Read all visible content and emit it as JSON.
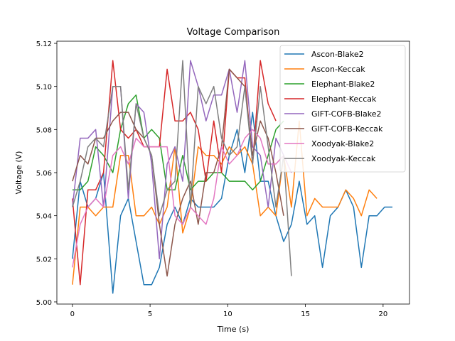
{
  "chart_data": {
    "type": "line",
    "title": "Voltage Comparison",
    "xlabel": "Time (s)",
    "ylabel": "Voltage (V)",
    "xlim": [
      -1.0,
      21.7
    ],
    "ylim": [
      4.999,
      5.121
    ],
    "xticks": [
      0,
      5,
      10,
      15,
      20
    ],
    "yticks": [
      5.0,
      5.02,
      5.04,
      5.06,
      5.08,
      5.1,
      5.12
    ],
    "ytick_labels": [
      "5.00",
      "5.02",
      "5.04",
      "5.06",
      "5.08",
      "5.10",
      "5.12"
    ],
    "grid": false,
    "legend_position": "upper right",
    "series": [
      {
        "name": "Ascon-Blake2",
        "color": "#1f77b4",
        "x": [
          0.0,
          0.5,
          1.0,
          1.5,
          2.0,
          2.6,
          3.1,
          3.6,
          4.1,
          4.6,
          5.1,
          5.6,
          6.1,
          6.6,
          7.1,
          7.6,
          8.1,
          8.6,
          9.1,
          9.6,
          10.1,
          10.6,
          11.1,
          11.6,
          12.1,
          12.6,
          13.1,
          13.6,
          14.1,
          14.6,
          15.1,
          15.6,
          16.1,
          16.6,
          17.1,
          17.6,
          18.1,
          18.6,
          19.1,
          19.6,
          20.1,
          20.6
        ],
        "y": [
          5.02,
          5.056,
          5.044,
          5.048,
          5.06,
          5.004,
          5.04,
          5.048,
          5.028,
          5.008,
          5.008,
          5.016,
          5.036,
          5.044,
          5.036,
          5.048,
          5.044,
          5.044,
          5.044,
          5.048,
          5.068,
          5.08,
          5.06,
          5.088,
          5.056,
          5.056,
          5.04,
          5.028,
          5.036,
          5.056,
          5.036,
          5.04,
          5.016,
          5.04,
          5.044,
          5.052,
          5.044,
          5.016,
          5.04,
          5.04,
          5.044,
          5.044
        ]
      },
      {
        "name": "Ascon-Keccak",
        "color": "#ff7f0e",
        "x": [
          0.0,
          0.5,
          1.0,
          1.5,
          2.0,
          2.6,
          3.1,
          3.6,
          4.1,
          4.6,
          5.1,
          5.6,
          6.1,
          6.6,
          7.1,
          7.6,
          8.1,
          8.6,
          9.1,
          9.6,
          10.1,
          10.6,
          11.1,
          11.6,
          12.1,
          12.6,
          13.1,
          13.6,
          14.1,
          14.6,
          15.1,
          15.6,
          16.1,
          16.6,
          17.1,
          17.6,
          18.1,
          18.6,
          19.1,
          19.6
        ],
        "y": [
          5.008,
          5.044,
          5.044,
          5.04,
          5.044,
          5.044,
          5.068,
          5.068,
          5.04,
          5.04,
          5.044,
          5.036,
          5.044,
          5.072,
          5.032,
          5.044,
          5.072,
          5.068,
          5.068,
          5.064,
          5.072,
          5.068,
          5.072,
          5.064,
          5.04,
          5.044,
          5.04,
          5.068,
          5.044,
          5.084,
          5.04,
          5.048,
          5.044,
          5.044,
          5.044,
          5.052,
          5.048,
          5.04,
          5.052,
          5.048
        ]
      },
      {
        "name": "Elephant-Blake2",
        "color": "#2ca02c",
        "x": [
          0.0,
          0.5,
          1.0,
          1.5,
          2.0,
          2.6,
          3.1,
          3.6,
          4.1,
          4.6,
          5.1,
          5.6,
          6.1,
          6.6,
          7.1,
          7.6,
          8.1,
          8.6,
          9.1,
          9.6,
          10.1,
          10.6,
          11.1,
          11.6,
          12.1,
          12.6,
          13.1,
          13.6
        ],
        "y": [
          5.052,
          5.052,
          5.056,
          5.072,
          5.068,
          5.06,
          5.08,
          5.092,
          5.096,
          5.076,
          5.08,
          5.076,
          5.052,
          5.052,
          5.068,
          5.052,
          5.056,
          5.056,
          5.06,
          5.06,
          5.056,
          5.056,
          5.056,
          5.052,
          5.056,
          5.068,
          5.08,
          5.084
        ]
      },
      {
        "name": "Elephant-Keccak",
        "color": "#d62728",
        "x": [
          0.0,
          0.5,
          1.0,
          1.5,
          2.0,
          2.6,
          3.1,
          3.6,
          4.1,
          4.6,
          5.1,
          5.6,
          6.1,
          6.6,
          7.1,
          7.6,
          8.1,
          8.6,
          9.1,
          9.6,
          10.1,
          10.6,
          11.1,
          11.6,
          12.1,
          12.6,
          13.1
        ],
        "y": [
          5.048,
          5.008,
          5.052,
          5.052,
          5.06,
          5.112,
          5.08,
          5.076,
          5.08,
          5.072,
          5.072,
          5.072,
          5.108,
          5.084,
          5.084,
          5.088,
          5.08,
          5.056,
          5.084,
          5.06,
          5.108,
          5.104,
          5.104,
          5.064,
          5.112,
          5.092,
          5.084
        ]
      },
      {
        "name": "GIFT-COFB-Blake2",
        "color": "#9467bd",
        "x": [
          0.0,
          0.5,
          1.0,
          1.5,
          2.0,
          2.6,
          3.1,
          3.6,
          4.1,
          4.6,
          5.1,
          5.6,
          6.1,
          6.6,
          7.1,
          7.6,
          8.1,
          8.6,
          9.1,
          9.6,
          10.1,
          10.6,
          11.1,
          11.6,
          12.1,
          12.6,
          13.1,
          13.6,
          14.1
        ],
        "y": [
          5.044,
          5.076,
          5.076,
          5.08,
          5.044,
          5.1,
          5.1,
          5.048,
          5.092,
          5.088,
          5.064,
          5.02,
          5.064,
          5.072,
          5.056,
          5.112,
          5.1,
          5.084,
          5.096,
          5.096,
          5.108,
          5.088,
          5.112,
          5.072,
          5.068,
          5.044,
          5.076,
          5.068,
          5.06
        ]
      },
      {
        "name": "GIFT-COFB-Keccak",
        "color": "#8c564b",
        "x": [
          0.0,
          0.5,
          1.0,
          1.5,
          2.0,
          2.6,
          3.1,
          3.6,
          4.1,
          4.6,
          5.1,
          5.6,
          6.1,
          6.6,
          7.1,
          7.6,
          8.1,
          8.6,
          9.1,
          9.6,
          10.1,
          10.6,
          11.1,
          11.6,
          12.1,
          12.6,
          13.1,
          13.6
        ],
        "y": [
          5.056,
          5.068,
          5.064,
          5.076,
          5.076,
          5.084,
          5.088,
          5.088,
          5.08,
          5.076,
          5.068,
          5.036,
          5.012,
          5.036,
          5.048,
          5.056,
          5.036,
          5.06,
          5.06,
          5.072,
          5.108,
          5.104,
          5.1,
          5.068,
          5.084,
          5.076,
          5.06,
          5.04
        ]
      },
      {
        "name": "Xoodyak-Blake2",
        "color": "#e377c2",
        "x": [
          0.0,
          0.5,
          1.0,
          1.5,
          2.0,
          2.6,
          3.1,
          3.6,
          4.1,
          4.6,
          5.1,
          5.6,
          6.1,
          6.6,
          7.1,
          7.6,
          8.1,
          8.6,
          9.1,
          9.6,
          10.1,
          10.6,
          11.1,
          11.6,
          12.1,
          12.6,
          13.1,
          13.6,
          14.1
        ],
        "y": [
          5.016,
          5.036,
          5.044,
          5.048,
          5.044,
          5.068,
          5.072,
          5.064,
          5.076,
          5.072,
          5.072,
          5.072,
          5.072,
          5.04,
          5.036,
          5.044,
          5.04,
          5.036,
          5.048,
          5.072,
          5.064,
          5.068,
          5.076,
          5.08,
          5.076,
          5.064,
          5.064,
          5.068,
          5.06
        ]
      },
      {
        "name": "Xoodyak-Keccak",
        "color": "#7f7f7f",
        "x": [
          0.0,
          0.5,
          1.0,
          1.5,
          2.0,
          2.6,
          3.1,
          3.6,
          4.1,
          4.6,
          5.1,
          5.6,
          6.1,
          6.6,
          7.1,
          7.6,
          8.1,
          8.6,
          9.1,
          9.6,
          10.1,
          10.6,
          11.1,
          11.6,
          12.1,
          12.6,
          13.1,
          13.6,
          14.1
        ],
        "y": [
          5.044,
          5.056,
          5.072,
          5.076,
          5.072,
          5.1,
          5.1,
          5.052,
          5.092,
          5.076,
          5.068,
          5.04,
          5.052,
          5.056,
          5.112,
          5.044,
          5.1,
          5.092,
          5.1,
          5.076,
          5.068,
          5.072,
          5.1,
          5.064,
          5.1,
          5.072,
          5.044,
          5.068,
          5.012
        ]
      }
    ]
  }
}
